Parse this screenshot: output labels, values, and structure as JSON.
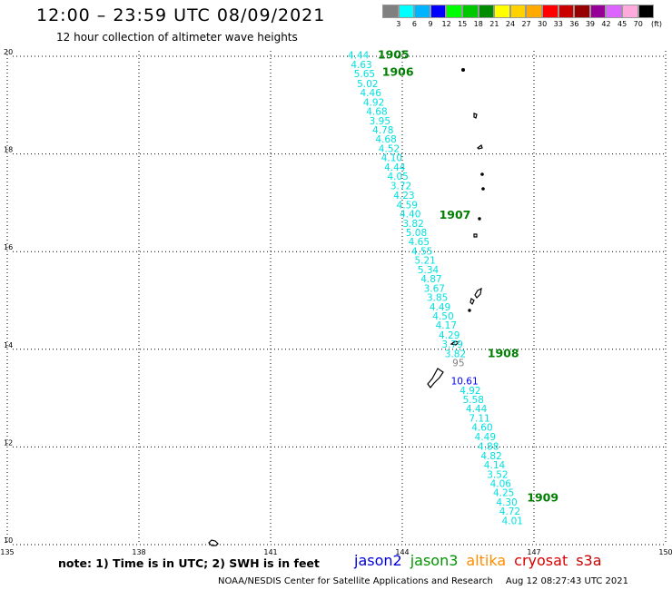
{
  "header": {
    "title": "12:00 – 23:59 UTC 08/09/2021",
    "subtitle": "12 hour collection of altimeter wave heights"
  },
  "scale": {
    "labels": [
      "3",
      "6",
      "9",
      "12",
      "15",
      "18",
      "21",
      "24",
      "27",
      "30",
      "33",
      "36",
      "39",
      "42",
      "45",
      "70"
    ],
    "colors": [
      "#808080",
      "#00ffff",
      "#00b4ff",
      "#0000ff",
      "#00ff00",
      "#00c800",
      "#008c00",
      "#ffff00",
      "#ffd200",
      "#ffaa00",
      "#ff0000",
      "#c80000",
      "#960000",
      "#960096",
      "#dc64ff",
      "#ffaadc",
      "#000000"
    ],
    "unit": "(ft)"
  },
  "footer": {
    "note": "note:  1) Time is in UTC;  2) SWH is in feet",
    "missions": [
      {
        "name": "jason2",
        "color": "#0000dc"
      },
      {
        "name": "jason3",
        "color": "#009600"
      },
      {
        "name": "altika",
        "color": "#ff8c00"
      },
      {
        "name": "cryosat",
        "color": "#dc0000"
      },
      {
        "name": "s3a",
        "color": "#c80000"
      }
    ],
    "credit": "NOAA/NESDIS Center for Satellite Applications and Research",
    "timestamp": "Aug 12 08:27:43 UTC 2021"
  },
  "chart_data": {
    "type": "scatter",
    "title": "12:00 – 23:59 UTC 08/09/2021",
    "subtitle": "12 hour collection of altimeter wave heights",
    "xlabel": "",
    "ylabel": "",
    "xlim": [
      135,
      150
    ],
    "ylim": [
      10,
      20
    ],
    "grid": true,
    "x_ticks": [
      "135",
      "138",
      "141",
      "144",
      "147",
      "150"
    ],
    "y_ticks": [
      "10",
      "12",
      "14",
      "16",
      "18",
      "20"
    ],
    "series": [
      {
        "name": "jason3",
        "color": "#00e0e0",
        "points": [
          {
            "lon": 143.0,
            "lat": 19.95,
            "swh": "4.44"
          },
          {
            "lon": 143.07,
            "lat": 19.76,
            "swh": "4.63"
          },
          {
            "lon": 143.14,
            "lat": 19.57,
            "swh": "5.65"
          },
          {
            "lon": 143.21,
            "lat": 19.37,
            "swh": "5.02"
          },
          {
            "lon": 143.28,
            "lat": 19.18,
            "swh": "4.46"
          },
          {
            "lon": 143.35,
            "lat": 18.99,
            "swh": "4.92"
          },
          {
            "lon": 143.42,
            "lat": 18.8,
            "swh": "4.68"
          },
          {
            "lon": 143.49,
            "lat": 18.61,
            "swh": "3.95"
          },
          {
            "lon": 143.56,
            "lat": 18.42,
            "swh": "4.78"
          },
          {
            "lon": 143.63,
            "lat": 18.23,
            "swh": "4.68"
          },
          {
            "lon": 143.7,
            "lat": 18.04,
            "swh": "4.52"
          },
          {
            "lon": 143.76,
            "lat": 17.85,
            "swh": "4.10"
          },
          {
            "lon": 143.83,
            "lat": 17.66,
            "swh": "4.44"
          },
          {
            "lon": 143.9,
            "lat": 17.47,
            "swh": "4.05"
          },
          {
            "lon": 143.97,
            "lat": 17.28,
            "swh": "3.72"
          },
          {
            "lon": 144.04,
            "lat": 17.08,
            "swh": "4.23"
          },
          {
            "lon": 144.11,
            "lat": 16.89,
            "swh": "4.59"
          },
          {
            "lon": 144.18,
            "lat": 16.7,
            "swh": "4.40"
          },
          {
            "lon": 144.25,
            "lat": 16.51,
            "swh": "3.82"
          },
          {
            "lon": 144.32,
            "lat": 16.32,
            "swh": "5.08"
          },
          {
            "lon": 144.38,
            "lat": 16.13,
            "swh": "4.65"
          },
          {
            "lon": 144.45,
            "lat": 15.94,
            "swh": "4.55"
          },
          {
            "lon": 144.52,
            "lat": 15.75,
            "swh": "5.21"
          },
          {
            "lon": 144.59,
            "lat": 15.56,
            "swh": "5.34"
          },
          {
            "lon": 144.66,
            "lat": 15.37,
            "swh": "4.87"
          },
          {
            "lon": 144.73,
            "lat": 15.18,
            "swh": "3.67"
          },
          {
            "lon": 144.8,
            "lat": 14.99,
            "swh": "3.85"
          },
          {
            "lon": 144.86,
            "lat": 14.8,
            "swh": "4.49"
          },
          {
            "lon": 144.93,
            "lat": 14.61,
            "swh": "4.50"
          },
          {
            "lon": 145.0,
            "lat": 14.42,
            "swh": "4.17"
          },
          {
            "lon": 145.07,
            "lat": 14.22,
            "swh": "4.29"
          },
          {
            "lon": 145.14,
            "lat": 14.03,
            "swh": "3.79"
          },
          {
            "lon": 145.21,
            "lat": 13.84,
            "swh": "3.82"
          },
          {
            "lon": 145.55,
            "lat": 13.09,
            "swh": "4.92"
          },
          {
            "lon": 145.62,
            "lat": 12.9,
            "swh": "5.58"
          },
          {
            "lon": 145.69,
            "lat": 12.71,
            "swh": "4.44"
          },
          {
            "lon": 145.76,
            "lat": 12.52,
            "swh": "7.11"
          },
          {
            "lon": 145.82,
            "lat": 12.33,
            "swh": "4.60"
          },
          {
            "lon": 145.89,
            "lat": 12.14,
            "swh": "4.49"
          },
          {
            "lon": 145.96,
            "lat": 11.94,
            "swh": "4.88"
          },
          {
            "lon": 146.03,
            "lat": 11.75,
            "swh": "4.82"
          },
          {
            "lon": 146.1,
            "lat": 11.56,
            "swh": "4.14"
          },
          {
            "lon": 146.17,
            "lat": 11.37,
            "swh": "3.52"
          },
          {
            "lon": 146.24,
            "lat": 11.18,
            "swh": "4.06"
          },
          {
            "lon": 146.31,
            "lat": 10.99,
            "swh": "4.25"
          },
          {
            "lon": 146.38,
            "lat": 10.8,
            "swh": "4.30"
          },
          {
            "lon": 146.45,
            "lat": 10.61,
            "swh": "4.72"
          },
          {
            "lon": 146.51,
            "lat": 10.42,
            "swh": "4.01"
          }
        ]
      },
      {
        "name": "jason3 (gray)",
        "color": "#808080",
        "points": [
          {
            "lon": 145.28,
            "lat": 13.65,
            "swh": "95"
          }
        ]
      },
      {
        "name": "jason2 (blue)",
        "color": "#0000ff",
        "points": [
          {
            "lon": 145.42,
            "lat": 13.28,
            "swh": "10.61"
          }
        ]
      }
    ],
    "pass_labels": [
      {
        "text": "1905",
        "lon": 143.8,
        "lat": 19.95
      },
      {
        "text": "1906",
        "lon": 143.9,
        "lat": 19.6
      },
      {
        "text": "1907",
        "lon": 145.2,
        "lat": 16.67
      },
      {
        "text": "1908",
        "lon": 146.3,
        "lat": 13.84
      },
      {
        "text": "1909",
        "lon": 147.2,
        "lat": 10.88
      }
    ]
  }
}
